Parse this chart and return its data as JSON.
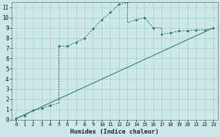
{
  "xlabel": "Humidex (Indice chaleur)",
  "background_color": "#cce8e8",
  "grid_color": "#aacccc",
  "line_color": "#2d7a6e",
  "xlim": [
    -0.5,
    23.5
  ],
  "ylim": [
    0,
    11.5
  ],
  "xticks": [
    0,
    1,
    2,
    3,
    4,
    5,
    6,
    7,
    8,
    9,
    10,
    11,
    12,
    13,
    14,
    15,
    16,
    17,
    18,
    19,
    20,
    21,
    22,
    23
  ],
  "yticks": [
    0,
    1,
    2,
    3,
    4,
    5,
    6,
    7,
    8,
    9,
    10,
    11
  ],
  "curve_x": [
    0,
    1,
    2,
    3,
    4,
    5,
    5,
    6,
    7,
    8,
    9,
    10,
    11,
    12,
    13,
    13,
    14,
    15,
    16,
    17,
    17,
    18,
    19,
    20,
    21,
    22,
    23
  ],
  "curve_y": [
    0.1,
    0.4,
    0.9,
    1.1,
    1.4,
    1.6,
    7.2,
    7.2,
    7.6,
    8.0,
    8.9,
    9.8,
    10.5,
    11.3,
    11.5,
    9.5,
    9.8,
    10.0,
    9.0,
    9.0,
    8.4,
    8.5,
    8.7,
    8.7,
    8.8,
    8.8,
    9.0
  ],
  "marker_x": [
    0,
    1,
    2,
    3,
    4,
    5,
    6,
    7,
    8,
    9,
    10,
    11,
    12,
    13,
    14,
    15,
    16,
    17,
    18,
    19,
    20,
    21,
    22,
    23
  ],
  "marker_y": [
    0.1,
    0.4,
    0.9,
    1.1,
    1.4,
    7.2,
    7.2,
    7.6,
    8.0,
    8.9,
    9.8,
    10.5,
    11.3,
    11.5,
    9.8,
    10.0,
    9.0,
    8.4,
    8.5,
    8.7,
    8.7,
    8.8,
    8.8,
    9.0
  ],
  "line2_x": [
    0,
    23
  ],
  "line2_y": [
    0.1,
    9.0
  ]
}
